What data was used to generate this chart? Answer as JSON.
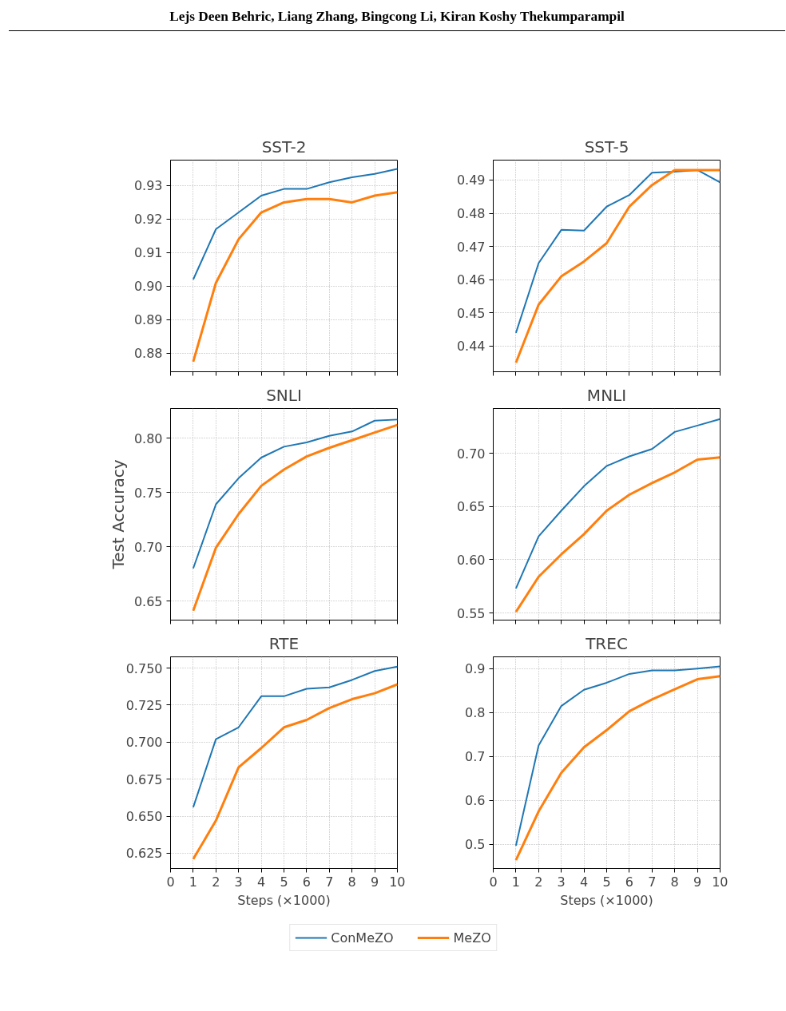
{
  "chart_data": [
    {
      "type": "line",
      "title": "SST-2",
      "annotations": [
        "Lejs Deen Behric, Liang Zhang, Bingcong Li, Kiran Koshy Thekumparampil"
      ],
      "x": [
        1,
        2,
        3,
        4,
        5,
        6,
        7,
        8,
        9,
        10
      ],
      "xlim": [
        0,
        10
      ],
      "xticks": [
        0,
        1,
        2,
        3,
        4,
        5,
        6,
        7,
        8,
        9,
        10
      ],
      "ylim": [
        0.8745,
        0.9376
      ],
      "yticks": [
        {
          "value": 0.88,
          "label": "0.88"
        },
        {
          "value": 0.89,
          "label": "0.89"
        },
        {
          "value": 0.9,
          "label": "0.90"
        },
        {
          "value": 0.91,
          "label": "0.91"
        },
        {
          "value": 0.92,
          "label": "0.92"
        },
        {
          "value": 0.93,
          "label": "0.93"
        }
      ],
      "grid": true,
      "tick_labels": "y",
      "series": [
        {
          "color": "#1f77b4",
          "values": [
            0.902,
            0.917,
            0.922,
            0.927,
            0.929,
            0.929,
            0.931,
            0.9325,
            0.9335,
            0.935
          ]
        },
        {
          "color": "#ff7f0e",
          "values": [
            0.8775,
            0.901,
            0.914,
            0.922,
            0.925,
            0.926,
            0.926,
            0.925,
            0.927,
            0.928
          ]
        }
      ]
    },
    {
      "type": "line",
      "title": "SST-5",
      "x": [
        1,
        2,
        3,
        4,
        5,
        6,
        7,
        8,
        9,
        10
      ],
      "xlim": [
        0,
        10
      ],
      "xticks": [
        0,
        1,
        2,
        3,
        4,
        5,
        6,
        7,
        8,
        9,
        10
      ],
      "ylim": [
        0.4323,
        0.496
      ],
      "yticks": [
        0.44,
        0.45,
        0.46,
        0.47,
        0.48,
        0.49
      ],
      "grid": true,
      "tick_labels": "y",
      "series": [
        {
          "color": "#1f77b4",
          "values": [
            0.444,
            0.465,
            0.475,
            0.4748,
            0.482,
            0.4855,
            0.4922,
            0.4925,
            0.493,
            0.4893
          ]
        },
        {
          "color": "#ff7f0e",
          "values": [
            0.435,
            0.4525,
            0.461,
            0.4655,
            0.471,
            0.482,
            0.4885,
            0.493,
            0.493,
            0.493
          ]
        }
      ]
    },
    {
      "type": "line",
      "title": "SNLI",
      "ylabel": "Test Accuracy",
      "x": [
        1,
        2,
        3,
        4,
        5,
        6,
        7,
        8,
        9,
        10
      ],
      "xlim": [
        0,
        10
      ],
      "xticks": [
        0,
        1,
        2,
        3,
        4,
        5,
        6,
        7,
        8,
        9,
        10
      ],
      "ylim": [
        0.6324,
        0.8272
      ],
      "yticks": [
        {
          "value": 0.65,
          "label": "0.65"
        },
        {
          "value": 0.7,
          "label": "0.70"
        },
        {
          "value": 0.75,
          "label": "0.75"
        },
        {
          "value": 0.8,
          "label": "0.80"
        }
      ],
      "grid": true,
      "tick_labels": "y",
      "series": [
        {
          "color": "#1f77b4",
          "values": [
            0.68,
            0.739,
            0.763,
            0.782,
            0.792,
            0.796,
            0.802,
            0.806,
            0.816,
            0.817
          ]
        },
        {
          "color": "#ff7f0e",
          "values": [
            0.641,
            0.699,
            0.73,
            0.756,
            0.771,
            0.783,
            0.791,
            0.798,
            0.805,
            0.812
          ]
        }
      ]
    },
    {
      "type": "line",
      "title": "MNLI",
      "x": [
        1,
        2,
        3,
        4,
        5,
        6,
        7,
        8,
        9,
        10
      ],
      "xlim": [
        0,
        10
      ],
      "xticks": [
        0,
        1,
        2,
        3,
        4,
        5,
        6,
        7,
        8,
        9,
        10
      ],
      "ylim": [
        0.5433,
        0.742
      ],
      "yticks": [
        {
          "value": 0.55,
          "label": "0.55"
        },
        {
          "value": 0.6,
          "label": "0.60"
        },
        {
          "value": 0.65,
          "label": "0.65"
        },
        {
          "value": 0.7,
          "label": "0.70"
        }
      ],
      "grid": true,
      "tick_labels": "y",
      "series": [
        {
          "color": "#1f77b4",
          "values": [
            0.573,
            0.622,
            0.646,
            0.669,
            0.688,
            0.697,
            0.704,
            0.72,
            0.726,
            0.732
          ]
        },
        {
          "color": "#ff7f0e",
          "values": [
            0.551,
            0.584,
            0.605,
            0.624,
            0.646,
            0.661,
            0.672,
            0.682,
            0.694,
            0.696
          ]
        }
      ]
    },
    {
      "type": "line",
      "title": "RTE",
      "xlabel": "Steps (×1000)",
      "x": [
        1,
        2,
        3,
        4,
        5,
        6,
        7,
        8,
        9,
        10
      ],
      "xlim": [
        0,
        10
      ],
      "xticks": [
        0,
        1,
        2,
        3,
        4,
        5,
        6,
        7,
        8,
        9,
        10
      ],
      "ylim": [
        0.6147,
        0.7576
      ],
      "yticks": [
        {
          "value": 0.625,
          "label": "0.625"
        },
        {
          "value": 0.65,
          "label": "0.650"
        },
        {
          "value": 0.675,
          "label": "0.675"
        },
        {
          "value": 0.7,
          "label": "0.700"
        },
        {
          "value": 0.725,
          "label": "0.725"
        },
        {
          "value": 0.75,
          "label": "0.750"
        }
      ],
      "grid": true,
      "series": [
        {
          "color": "#1f77b4",
          "values": [
            0.656,
            0.702,
            0.71,
            0.731,
            0.731,
            0.736,
            0.737,
            0.742,
            0.748,
            0.751
          ]
        },
        {
          "color": "#ff7f0e",
          "values": [
            0.621,
            0.647,
            0.683,
            0.696,
            0.71,
            0.715,
            0.723,
            0.729,
            0.733,
            0.739
          ]
        }
      ]
    },
    {
      "type": "line",
      "title": "TREC",
      "xlabel": "Steps (×1000)",
      "x": [
        1,
        2,
        3,
        4,
        5,
        6,
        7,
        8,
        9,
        10
      ],
      "xlim": [
        0,
        10
      ],
      "xticks": [
        0,
        1,
        2,
        3,
        4,
        5,
        6,
        7,
        8,
        9,
        10
      ],
      "ylim": [
        0.445,
        0.927
      ],
      "yticks": [
        0.5,
        0.6,
        0.7,
        0.8,
        0.9
      ],
      "grid": true,
      "legend": "bottom",
      "series": [
        {
          "name": "ConMeZO",
          "color": "#1f77b4",
          "values": [
            0.497,
            0.725,
            0.815,
            0.852,
            0.868,
            0.888,
            0.896,
            0.896,
            0.9,
            0.905
          ]
        },
        {
          "name": "MeZO",
          "color": "#ff7f0e",
          "values": [
            0.464,
            0.575,
            0.663,
            0.721,
            0.76,
            0.803,
            0.83,
            0.853,
            0.876,
            0.883
          ]
        }
      ]
    }
  ]
}
